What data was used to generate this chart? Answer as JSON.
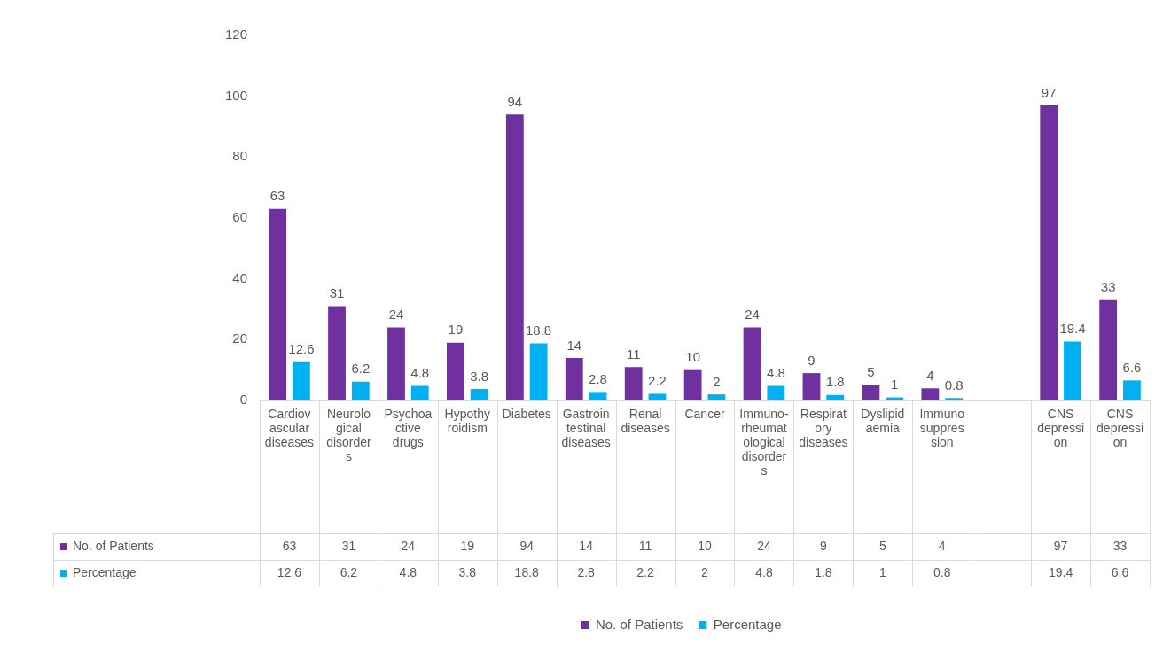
{
  "chart_data": {
    "type": "bar",
    "categories": [
      "Cardiovascular diseases",
      "Neurological disorders",
      "Psychoactive drugs",
      "Hypothyroidism",
      "Diabetes",
      "Gastrointestinal diseases",
      "Renal diseases",
      "Cancer",
      "Immuno-rheumatological disorders",
      "Respiratory diseases",
      "Dyslipidaemia",
      "Immunosuppression",
      null,
      "CNS depression",
      "CNS depression"
    ],
    "series": [
      {
        "name": "No. of Patients",
        "color": "#7030a0",
        "values": [
          63,
          31,
          24,
          19,
          94,
          14,
          11,
          10,
          24,
          9,
          5,
          4,
          null,
          97,
          33
        ],
        "value_labels": [
          "63",
          "31",
          "24",
          "19",
          "94",
          "14",
          "11",
          "10",
          "24",
          "9",
          "5",
          "4",
          null,
          "97",
          "33"
        ]
      },
      {
        "name": "Percentage",
        "color": "#00b0f0",
        "values": [
          12.6,
          6.2,
          4.8,
          3.8,
          18.8,
          2.8,
          2.2,
          2,
          4.8,
          1.8,
          1,
          0.8,
          null,
          19.4,
          6.6
        ],
        "value_labels": [
          "12.6",
          "6.2",
          "4.8",
          "3.8",
          "18.8",
          "2.8",
          "2.2",
          "2",
          "4.8",
          "1.8",
          "1",
          "0.8",
          null,
          "19.4",
          "6.6"
        ]
      }
    ],
    "annotations": [
      "63",
      "31",
      "24",
      "19",
      "94",
      "14",
      "11",
      "10",
      "24",
      "9",
      "5",
      "4",
      "97",
      "33",
      "12.6",
      "6.2",
      "4.8",
      "3.8",
      "18.8",
      "2.8",
      "2.2",
      "2",
      "4.8",
      "1.8",
      "1",
      "0.8",
      "19.4",
      "6.6"
    ],
    "ylim": [
      0,
      120
    ],
    "yticks": [
      0,
      20,
      40,
      60,
      80,
      100,
      120
    ],
    "data_labels": true,
    "legend": "bottom",
    "grid": false
  }
}
